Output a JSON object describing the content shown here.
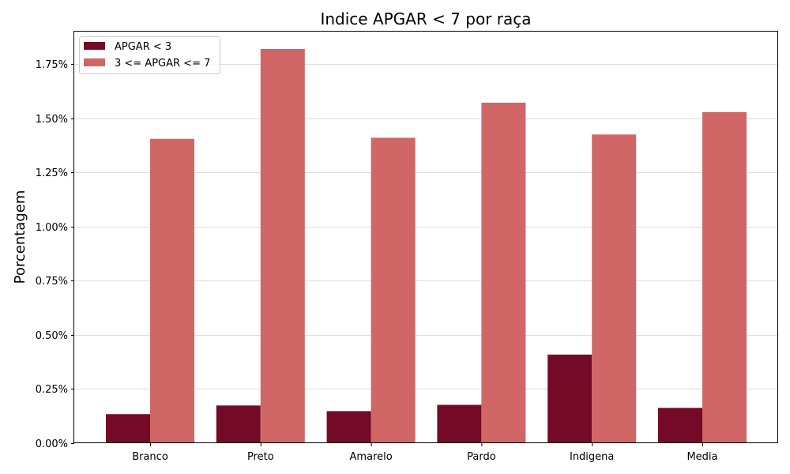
{
  "chart_data": {
    "type": "bar",
    "title": "Indice APGAR < 7 por raça",
    "xlabel": "",
    "ylabel": "Porcentagem",
    "categories": [
      "Branco",
      "Preto",
      "Amarelo",
      "Pardo",
      "Indigena",
      "Media"
    ],
    "series": [
      {
        "name": "APGAR < 3",
        "color": "#740a27",
        "values": [
          0.134,
          0.174,
          0.148,
          0.177,
          0.409,
          0.163
        ]
      },
      {
        "name": "3 <= APGAR <= 7",
        "color": "#d06666",
        "values": [
          1.405,
          1.82,
          1.41,
          1.572,
          1.425,
          1.528
        ]
      }
    ],
    "ylim": [
      0,
      1.9
    ],
    "yticks": [
      0,
      0.25,
      0.5,
      0.75,
      1.0,
      1.25,
      1.5,
      1.75
    ],
    "ytick_labels": [
      "0.00%",
      "0.25%",
      "0.50%",
      "0.75%",
      "1.00%",
      "1.25%",
      "1.50%",
      "1.75%"
    ],
    "grid": "y",
    "legend": "top-left"
  }
}
